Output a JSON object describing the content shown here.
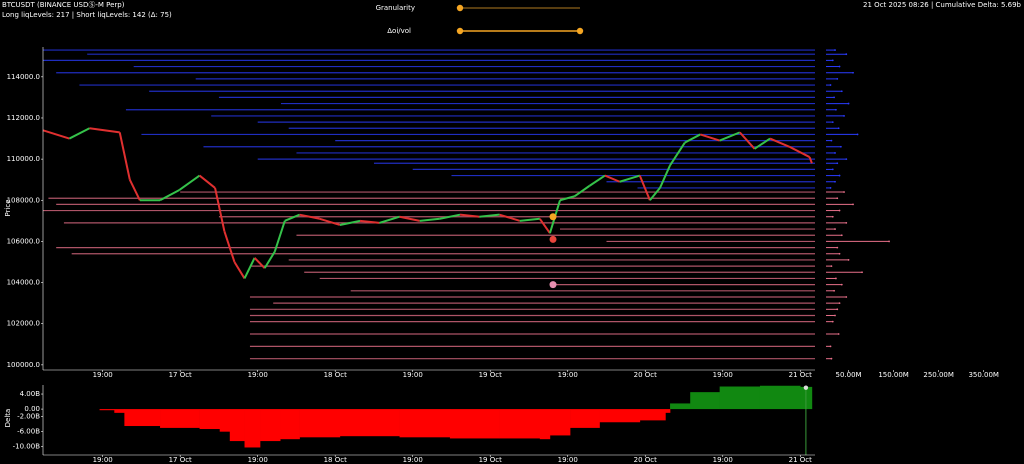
{
  "header": {
    "symbol": "BTCUSDT (BINANCE USDⓈ-M Perp)",
    "levels": "Long liqLevels: 217 | Short liqLevels: 142 (Δ: 75)",
    "status": "21 Oct 2025 08:26 | Cumulative Delta: 5.69b",
    "sliders": [
      "Granularity",
      "Δoi/vol"
    ]
  },
  "chart_data": [
    {
      "type": "line",
      "ylabel": "Price",
      "up_color": "#35c24a",
      "down_color": "#e03030",
      "x": [
        -0.77,
        -0.43,
        -0.17,
        0.22,
        0.35,
        0.48,
        0.74,
        0.99,
        1.25,
        1.45,
        1.57,
        1.7,
        1.83,
        1.96,
        2.09,
        2.22,
        2.35,
        2.54,
        2.8,
        3.06,
        3.32,
        3.57,
        3.83,
        4.09,
        4.35,
        4.61,
        4.86,
        5.12,
        5.38,
        5.64,
        5.77,
        5.9,
        6.09,
        6.28,
        6.48,
        6.67,
        6.93,
        7.06,
        7.19,
        7.32,
        7.51,
        7.71,
        7.96,
        8.22,
        8.41,
        8.61,
        8.86,
        9.12,
        9.15
      ],
      "values": [
        111400,
        111000,
        111500,
        111300,
        109000,
        108000,
        108000,
        108500,
        109200,
        108600,
        106500,
        105000,
        104200,
        105200,
        104700,
        105500,
        107000,
        107300,
        107100,
        106800,
        107000,
        106900,
        107200,
        107000,
        107100,
        107300,
        107200,
        107300,
        107000,
        107100,
        106400,
        108000,
        108200,
        108700,
        109200,
        108900,
        109200,
        108000,
        108600,
        109700,
        110800,
        111200,
        110900,
        111300,
        110500,
        111000,
        110600,
        110100,
        109800
      ],
      "xlim": [
        -0.77,
        9.19
      ],
      "ylim": [
        99750,
        115450
      ],
      "xticks": [
        {
          "value": 0,
          "label": "19:00"
        },
        {
          "value": 1,
          "label": "17 Oct"
        },
        {
          "value": 2,
          "label": "19:00"
        },
        {
          "value": 3,
          "label": "18 Oct"
        },
        {
          "value": 4,
          "label": "19:00"
        },
        {
          "value": 5,
          "label": "19 Oct"
        },
        {
          "value": 6,
          "label": "19:00"
        },
        {
          "value": 7,
          "label": "20 Oct"
        },
        {
          "value": 8,
          "label": "19:00"
        },
        {
          "value": 9,
          "label": "21 Oct"
        }
      ],
      "yticks": [
        {
          "value": 100000,
          "label": "100000.0"
        },
        {
          "value": 102000,
          "label": "102000.0"
        },
        {
          "value": 104000,
          "label": "104000.0"
        },
        {
          "value": 106000,
          "label": "106000.0"
        },
        {
          "value": 108000,
          "label": "108000.0"
        },
        {
          "value": 110000,
          "label": "110000.0"
        },
        {
          "value": 112000,
          "label": "112000.0"
        },
        {
          "value": 114000,
          "label": "114000.0"
        }
      ],
      "short_levels": {
        "color": "#2a3cff",
        "prices": [
          115300,
          115100,
          114800,
          114500,
          114200,
          113900,
          113600,
          113300,
          113000,
          112700,
          112400,
          112100,
          111800,
          111500,
          111200,
          110900,
          110600,
          110300,
          110000,
          109800,
          109500,
          109200,
          108900,
          108600
        ],
        "x": [
          -0.77,
          -0.2,
          -0.77,
          0.4,
          -0.6,
          1.2,
          -0.3,
          0.6,
          1.5,
          2.3,
          0.3,
          1.4,
          2.0,
          2.4,
          0.5,
          3.0,
          1.3,
          2.5,
          2.0,
          3.5,
          4.0,
          4.5,
          6.5,
          6.9
        ],
        "sizes": [
          20,
          45,
          15,
          30,
          60,
          25,
          10,
          35,
          18,
          50,
          22,
          40,
          15,
          28,
          70,
          12,
          33,
          20,
          45,
          25,
          15,
          30,
          20,
          10
        ]
      },
      "long_levels": {
        "color": "#e8708a",
        "prices": [
          108400,
          108100,
          107800,
          107500,
          107200,
          106900,
          106600,
          106300,
          106000,
          105700,
          105400,
          105100,
          104800,
          104500,
          104200,
          103900,
          103600,
          103300,
          103000,
          102700,
          102400,
          102100,
          101500,
          100900,
          100300
        ],
        "x": [
          1.0,
          -0.7,
          -0.6,
          -0.77,
          1.5,
          -0.5,
          5.9,
          2.5,
          6.5,
          -0.6,
          -0.4,
          2.4,
          1.9,
          2.6,
          2.8,
          5.8,
          3.2,
          1.9,
          2.2,
          1.9,
          1.9,
          1.9,
          1.9,
          1.9,
          1.9
        ],
        "sizes": [
          40,
          25,
          60,
          30,
          15,
          45,
          20,
          35,
          140,
          25,
          30,
          50,
          12,
          80,
          22,
          35,
          18,
          45,
          30,
          25,
          20,
          15,
          28,
          10,
          12
        ]
      },
      "markers": {
        "x": [
          5.81,
          5.81,
          5.81
        ],
        "prices": [
          107200,
          106100,
          103900
        ],
        "colors": [
          "#f5a623",
          "#e8453c",
          "#e88fb0"
        ]
      },
      "size_lim": [
        0,
        395
      ],
      "size_ticks": [
        {
          "value": 50,
          "label": "50.00M"
        },
        {
          "value": 150,
          "label": "150.00M"
        },
        {
          "value": 250,
          "label": "250.00M"
        },
        {
          "value": 350,
          "label": "350.00M"
        }
      ]
    },
    {
      "type": "area",
      "ylabel": "Delta",
      "pos_color": "#118811",
      "neg_color": "#ff0000",
      "x": [
        -0.77,
        -0.04,
        0.15,
        0.28,
        0.74,
        1.25,
        1.51,
        1.64,
        1.83,
        2.03,
        2.29,
        2.54,
        3.06,
        3.83,
        4.48,
        5.12,
        5.64,
        5.77,
        6.03,
        6.41,
        6.93,
        7.26,
        7.32,
        7.58,
        7.96,
        8.48,
        9.0,
        9.15
      ],
      "values": [
        0,
        -0.3,
        -1,
        -4.5,
        -5,
        -5.3,
        -6,
        -8.5,
        -10.2,
        -8.5,
        -8,
        -7.5,
        -7.2,
        -7.5,
        -7.8,
        -7.8,
        -8,
        -7,
        -5,
        -3.5,
        -3,
        -1,
        1.5,
        4.5,
        6,
        6.2,
        5.9,
        5.69
      ],
      "xlim": [
        -0.77,
        9.19
      ],
      "ylim": [
        -12.2,
        6.4
      ],
      "xticks": [
        {
          "value": 0,
          "label": "19:00"
        },
        {
          "value": 1,
          "label": "17 Oct"
        },
        {
          "value": 2,
          "label": "19:00"
        },
        {
          "value": 3,
          "label": "18 Oct"
        },
        {
          "value": 4,
          "label": "19:00"
        },
        {
          "value": 5,
          "label": "19 Oct"
        },
        {
          "value": 6,
          "label": "19:00"
        },
        {
          "value": 7,
          "label": "20 Oct"
        },
        {
          "value": 8,
          "label": "19:00"
        },
        {
          "value": 9,
          "label": "21 Oct"
        }
      ],
      "yticks": [
        {
          "value": 4,
          "label": "4.00B"
        },
        {
          "value": 0,
          "label": "0.00"
        },
        {
          "value": -2,
          "label": "-2.00B"
        },
        {
          "value": -6,
          "label": "-6.00B"
        },
        {
          "value": -10,
          "label": "-10.00B"
        }
      ]
    }
  ]
}
